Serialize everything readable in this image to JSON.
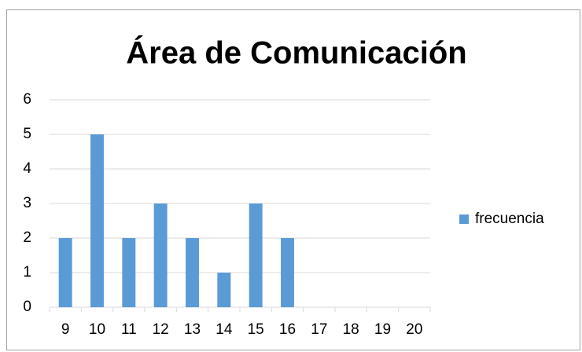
{
  "chart_data": {
    "type": "bar",
    "title": "Área de Comunicación",
    "categories": [
      "9",
      "10",
      "11",
      "12",
      "13",
      "14",
      "15",
      "16",
      "17",
      "18",
      "19",
      "20"
    ],
    "series": [
      {
        "name": "frecuencia",
        "color": "#5b9bd5",
        "values": [
          2,
          5,
          2,
          3,
          2,
          1,
          3,
          2,
          0,
          0,
          0,
          0
        ]
      }
    ],
    "ylim": [
      0,
      6
    ],
    "yticks": [
      0,
      1,
      2,
      3,
      4,
      5,
      6
    ],
    "grid": true,
    "legend": "right"
  }
}
